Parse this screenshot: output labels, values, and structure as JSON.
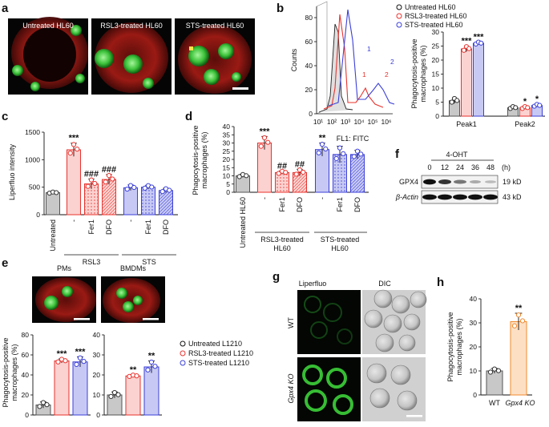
{
  "colors": {
    "gray": "#c8c8c8",
    "red": "#e8332e",
    "redfill": "#fbd2d0",
    "blue": "#3b3fd8",
    "bluefill": "#c7c9f4",
    "orange": "#f28a2e",
    "orangefill": "#fde0c4",
    "green": "#1fae36"
  },
  "panel_letters": {
    "a": "a",
    "b": "b",
    "c": "c",
    "d": "d",
    "e": "e",
    "f": "f",
    "g": "g",
    "h": "h"
  },
  "panel_a": {
    "labels": [
      "Untreated HL60",
      "RSL3-treated HL60",
      "STS-treated HL60"
    ]
  },
  "panel_b": {
    "hist_ylabel": "Counts",
    "hist_xlabel": "FL1: FITC",
    "hist_yticks": [
      "0",
      "20",
      "40",
      "60",
      "80"
    ],
    "hist_xticks": [
      "10¹",
      "10²",
      "10³",
      "10⁴",
      "10⁵",
      "10⁶"
    ],
    "peak_marks": [
      "1",
      "2",
      "1",
      "2"
    ],
    "legend": [
      "Untreated HL60",
      "RSL3-treated HL60",
      "STS-treated HL60"
    ]
  },
  "text_labels": {
    "phago": "Phagocytosis-positive",
    "mac": "macrophages (%)",
    "liper": "Liperfluo intensity",
    "untreated": "Untreated",
    "untreated_hl60": "Untreated HL60",
    "dash": "-",
    "fer1": "Fer1",
    "dfo": "DFO",
    "rsl3": "RSL3",
    "sts": "STS",
    "rsl3_hl60_1": "RSL3-treated",
    "rsl3_hl60_2": "HL60",
    "sts_hl60_1": "STS-treated",
    "sts_hl60_2": "HL60",
    "f_treatment": "4-OHT",
    "f_hours": [
      "0",
      "12",
      "24",
      "36",
      "48"
    ],
    "f_unit": "(h)",
    "f_rows": [
      "GPX4",
      "β-Actin"
    ],
    "f_sizes": [
      "19 kD",
      "43 kD"
    ],
    "e_titles": [
      "PMs",
      "BMDMs"
    ],
    "e_legend": [
      "Untreated L1210",
      "RSL3-treated L1210",
      "STS-treated L1210"
    ],
    "g_cols": [
      "Liperfluo",
      "DIC"
    ],
    "g_rows": [
      "WT",
      "Gpx4 KO"
    ],
    "h_cats": [
      "WT",
      "Gpx4 KO"
    ]
  },
  "chart_data": [
    {
      "panel": "b",
      "type": "bar",
      "categories": [
        "Peak1",
        "Peak2"
      ],
      "series": [
        {
          "name": "Untreated HL60",
          "values": [
            5.5,
            3
          ]
        },
        {
          "name": "RSL3-treated HL60",
          "values": [
            24,
            3
          ]
        },
        {
          "name": "STS-treated HL60",
          "values": [
            26,
            3.8
          ]
        }
      ],
      "errors": [
        [
          1,
          0.5
        ],
        [
          1,
          0.5
        ],
        [
          0.5,
          0.5
        ]
      ],
      "significance": [
        [
          "",
          "***",
          "***"
        ],
        [
          "",
          "*",
          "*"
        ]
      ],
      "ylabel": "Phagocytosis-positive macrophages (%)",
      "yticks": [
        0,
        5,
        10,
        15,
        20,
        25,
        30
      ],
      "ylim": [
        0,
        30
      ]
    },
    {
      "panel": "c",
      "type": "bar",
      "categories": [
        "Untreated",
        "-",
        "Fer1",
        "DFO",
        "-",
        "Fer1",
        "DFO"
      ],
      "values": [
        400,
        1180,
        560,
        640,
        490,
        500,
        440
      ],
      "errors": [
        15,
        120,
        90,
        90,
        50,
        35,
        40
      ],
      "significance": [
        "",
        "***",
        "###",
        "###",
        "",
        "",
        ""
      ],
      "groups": [
        "RSL3",
        "STS"
      ],
      "ylabel": "Liperfluo intensity",
      "yticks": [
        0,
        500,
        1000,
        1500
      ],
      "ylim": [
        0,
        1500
      ]
    },
    {
      "panel": "d",
      "type": "bar",
      "categories": [
        "Untreated HL60",
        "-",
        "Fer1",
        "DFO",
        "-",
        "Fer1",
        "DFO"
      ],
      "values": [
        10,
        30,
        12,
        12,
        26,
        23,
        23
      ],
      "errors": [
        1,
        4,
        1,
        2,
        4,
        5,
        2.5
      ],
      "significance": [
        "",
        "***",
        "##",
        "##",
        "**",
        "",
        ""
      ],
      "groups": [
        "RSL3-treated HL60",
        "STS-treated HL60"
      ],
      "ylabel": "Phagocytosis-positive macrophages (%)",
      "yticks": [
        0,
        5,
        10,
        15,
        20,
        25,
        30,
        35,
        40
      ],
      "ylim": [
        0,
        40
      ]
    },
    {
      "panel": "e-PMs",
      "type": "bar",
      "categories": [
        "Untreated L1210",
        "RSL3-treated L1210",
        "STS-treated L1210"
      ],
      "values": [
        10,
        54,
        53
      ],
      "errors": [
        3,
        2,
        5
      ],
      "significance": [
        "",
        "***",
        "***"
      ],
      "ylabel": "Phagocytosis-positive macrophages (%)",
      "yticks": [
        0,
        20,
        40,
        60,
        80
      ],
      "ylim": [
        0,
        80
      ]
    },
    {
      "panel": "e-BMDMs",
      "type": "bar",
      "categories": [
        "Untreated L1210",
        "RSL3-treated L1210",
        "STS-treated L1210"
      ],
      "values": [
        10,
        19.5,
        24
      ],
      "errors": [
        1.5,
        0.5,
        3
      ],
      "significance": [
        "",
        "**",
        "**"
      ],
      "ylabel": "",
      "yticks": [
        0,
        10,
        20,
        30,
        40
      ],
      "ylim": [
        0,
        40
      ]
    },
    {
      "panel": "h",
      "type": "bar",
      "categories": [
        "WT",
        "Gpx4 KO"
      ],
      "values": [
        10,
        30.5
      ],
      "errors": [
        1,
        3.5
      ],
      "significance": [
        "",
        "**"
      ],
      "ylabel": "Phagocytosis-positive macrophages (%)",
      "yticks": [
        0,
        10,
        20,
        30,
        40
      ],
      "ylim": [
        0,
        40
      ]
    }
  ]
}
